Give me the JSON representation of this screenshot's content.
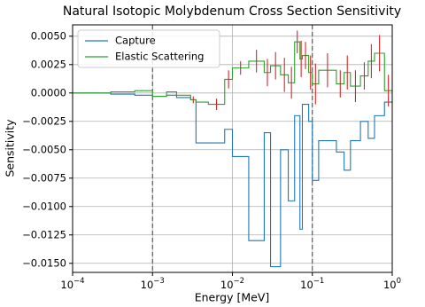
{
  "chart_data": {
    "type": "line",
    "drawstyle": "steps-post",
    "title": "Natural Isotopic Molybdenum Cross Section Sensitivity",
    "x_label": "Energy [MeV]",
    "y_label": "Sensitivity",
    "x_scale": "log",
    "grid": true,
    "legend": "upper left",
    "x": [
      0.0001,
      0.0003,
      0.0006,
      0.001,
      0.0015,
      0.002,
      0.003,
      0.0035,
      0.005,
      0.008,
      0.01,
      0.016,
      0.025,
      0.03,
      0.04,
      0.05,
      0.06,
      0.07,
      0.075,
      0.09,
      0.1,
      0.12,
      0.2,
      0.25,
      0.3,
      0.4,
      0.5,
      0.6,
      0.8,
      1.0
    ],
    "series": [
      {
        "name": "Capture",
        "color": "#1f77b4",
        "values": [
          0,
          -0.0001,
          -0.0002,
          -0.0003,
          -0.0002,
          -0.0004,
          -0.0006,
          -0.0044,
          -0.0044,
          -0.0032,
          -0.0056,
          -0.013,
          -0.0035,
          -0.0153,
          -0.005,
          -0.0095,
          -0.002,
          -0.012,
          -0.001,
          -0.0025,
          -0.0077,
          -0.0042,
          -0.0052,
          -0.0068,
          -0.0042,
          -0.0025,
          -0.004,
          -0.002,
          -0.0008,
          0
        ]
      },
      {
        "name": "Elastic Scattering",
        "color": "#2ca02c",
        "error_color": "#d62728",
        "values": [
          0,
          0.0001,
          0.0002,
          -0.0003,
          0.0001,
          -0.0002,
          -0.0006,
          -0.0008,
          -0.001,
          0.0012,
          0.0022,
          0.0028,
          0.0018,
          0.0024,
          0.0016,
          0.0009,
          0.0045,
          0.003,
          0.0033,
          0.0018,
          0.0008,
          0.002,
          0.0008,
          0.0018,
          0.0006,
          0.0015,
          0.0028,
          0.0035,
          0.0002,
          0
        ],
        "errors": [
          null,
          null,
          null,
          null,
          null,
          null,
          0.0003,
          null,
          0.0005,
          0.0008,
          0.0006,
          0.001,
          0.0012,
          0.0012,
          0.0015,
          0.0014,
          0.001,
          0.0016,
          0.0012,
          0.0015,
          0.0018,
          0.0015,
          0.0012,
          0.0015,
          0.0014,
          0.0012,
          0.0015,
          0.0016,
          0.0014,
          null
        ]
      }
    ],
    "vlines": [
      0.001,
      0.1
    ],
    "xlim": [
      0.0001,
      1
    ],
    "xticks": [
      {
        "value": 0.0001,
        "label": "10−4"
      },
      {
        "value": 0.001,
        "label": "10−3"
      },
      {
        "value": 0.01,
        "label": "10−2"
      },
      {
        "value": 0.1,
        "label": "10−1"
      },
      {
        "value": 1,
        "label": "100"
      }
    ],
    "ylim": [
      -0.0158,
      0.006
    ],
    "yticks": [
      {
        "value": 0.005,
        "label": "0.0050"
      },
      {
        "value": 0.0025,
        "label": "0.0025"
      },
      {
        "value": 0,
        "label": "0.0000"
      },
      {
        "value": -0.0025,
        "label": "−0.0025"
      },
      {
        "value": -0.005,
        "label": "−0.0050"
      },
      {
        "value": -0.0075,
        "label": "−0.0075"
      },
      {
        "value": -0.01,
        "label": "−0.0100"
      },
      {
        "value": -0.0125,
        "label": "−0.0125"
      },
      {
        "value": -0.015,
        "label": "−0.0150"
      }
    ]
  }
}
